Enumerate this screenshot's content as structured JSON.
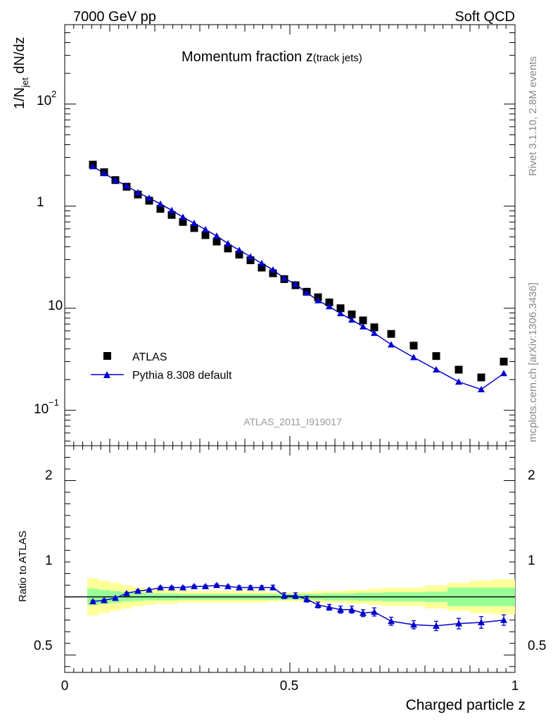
{
  "header": {
    "left": "7000 GeV pp",
    "right": "Soft QCD"
  },
  "side_labels": {
    "top": "Rivet 3.1.10,  2.8M events",
    "bottom": "mcplots.cern.ch [arXiv:1306.3436]"
  },
  "colors": {
    "data": "#000000",
    "mc": "#0000cc",
    "band_inner": "#99ff99",
    "band_outer": "#ffff99",
    "watermark": "#999999"
  },
  "chart_data": [
    {
      "panel": "main",
      "type": "scatter",
      "title_main": "Momentum fraction z",
      "title_sub": "(track jets)",
      "ylabel_main": "1/N",
      "ylabel_sub": "jet",
      "ylabel_tail": " dN/dz",
      "watermark": "ATLAS_2011_I919017",
      "yscale": "log",
      "ylim": [
        0.045,
        600
      ],
      "xlim": [
        0,
        1
      ],
      "ytick_labels": [
        "10",
        "1",
        "10"
      ],
      "ytick_powers": {
        "top": "2",
        "bottom": "−1"
      },
      "x": [
        0.0625,
        0.0875,
        0.1125,
        0.1375,
        0.1625,
        0.1875,
        0.2125,
        0.2375,
        0.2625,
        0.2875,
        0.3125,
        0.3375,
        0.3625,
        0.3875,
        0.4125,
        0.4375,
        0.4625,
        0.4875,
        0.5125,
        0.5375,
        0.5625,
        0.5875,
        0.6125,
        0.6375,
        0.6625,
        0.6875,
        0.725,
        0.775,
        0.825,
        0.875,
        0.925,
        0.975
      ],
      "series": [
        {
          "name": "ATLAS",
          "marker": "square",
          "values": [
            25.5,
            21.5,
            18.0,
            15.5,
            13.0,
            11.3,
            9.4,
            8.2,
            7.0,
            6.1,
            5.2,
            4.5,
            3.85,
            3.35,
            2.95,
            2.5,
            2.2,
            1.93,
            1.68,
            1.45,
            1.28,
            1.14,
            1.0,
            0.87,
            0.76,
            0.65,
            0.56,
            0.43,
            0.34,
            0.25,
            0.21,
            0.3
          ]
        },
        {
          "name": "Pythia 8.308 default",
          "marker": "triangle",
          "line": true,
          "values": [
            24.5,
            21.0,
            18.0,
            15.8,
            13.6,
            12.0,
            10.5,
            9.1,
            7.8,
            6.8,
            5.9,
            5.1,
            4.3,
            3.7,
            3.2,
            2.75,
            2.38,
            1.97,
            1.72,
            1.42,
            1.19,
            1.04,
            0.89,
            0.77,
            0.66,
            0.57,
            0.44,
            0.33,
            0.25,
            0.19,
            0.16,
            0.23
          ]
        }
      ],
      "legend": {
        "placement": "lower-left"
      }
    },
    {
      "panel": "ratio",
      "type": "line",
      "ylabel": "Ratio to ATLAS",
      "xlabel": "Charged particle z",
      "ylim": [
        0.35,
        2.3
      ],
      "xlim": [
        0,
        1
      ],
      "ytick_labels": [
        "2",
        "1",
        "0.5"
      ],
      "xtick_labels": [
        "0",
        "0.5",
        "1"
      ],
      "x": [
        0.0625,
        0.0875,
        0.1125,
        0.1375,
        0.1625,
        0.1875,
        0.2125,
        0.2375,
        0.2625,
        0.2875,
        0.3125,
        0.3375,
        0.3625,
        0.3875,
        0.4125,
        0.4375,
        0.4625,
        0.4875,
        0.5125,
        0.5375,
        0.5625,
        0.5875,
        0.6125,
        0.6375,
        0.6625,
        0.6875,
        0.725,
        0.775,
        0.825,
        0.875,
        0.925,
        0.975
      ],
      "series": [
        {
          "name": "Pythia 8.308 default",
          "values": [
            0.96,
            0.97,
            0.99,
            1.03,
            1.05,
            1.06,
            1.08,
            1.08,
            1.08,
            1.09,
            1.09,
            1.1,
            1.09,
            1.08,
            1.08,
            1.08,
            1.08,
            1.01,
            1.01,
            0.98,
            0.93,
            0.91,
            0.89,
            0.89,
            0.86,
            0.87,
            0.79,
            0.76,
            0.75,
            0.77,
            0.78,
            0.8
          ],
          "errors": [
            0.01,
            0.01,
            0.01,
            0.01,
            0.01,
            0.01,
            0.01,
            0.01,
            0.01,
            0.01,
            0.01,
            0.01,
            0.01,
            0.015,
            0.015,
            0.015,
            0.02,
            0.025,
            0.025,
            0.025,
            0.025,
            0.025,
            0.03,
            0.03,
            0.03,
            0.035,
            0.035,
            0.035,
            0.04,
            0.045,
            0.05,
            0.045
          ]
        }
      ],
      "band_inner": [
        0.07,
        0.06,
        0.05,
        0.04,
        0.035,
        0.03,
        0.03,
        0.03,
        0.025,
        0.025,
        0.025,
        0.025,
        0.025,
        0.025,
        0.025,
        0.025,
        0.025,
        0.025,
        0.025,
        0.025,
        0.025,
        0.03,
        0.03,
        0.03,
        0.035,
        0.035,
        0.04,
        0.04,
        0.045,
        0.08,
        0.08,
        0.08
      ],
      "band_outer": [
        0.16,
        0.14,
        0.12,
        0.1,
        0.08,
        0.07,
        0.06,
        0.06,
        0.05,
        0.05,
        0.05,
        0.05,
        0.05,
        0.05,
        0.05,
        0.05,
        0.04,
        0.04,
        0.04,
        0.04,
        0.05,
        0.05,
        0.05,
        0.06,
        0.06,
        0.07,
        0.08,
        0.08,
        0.1,
        0.12,
        0.14,
        0.15
      ]
    }
  ]
}
